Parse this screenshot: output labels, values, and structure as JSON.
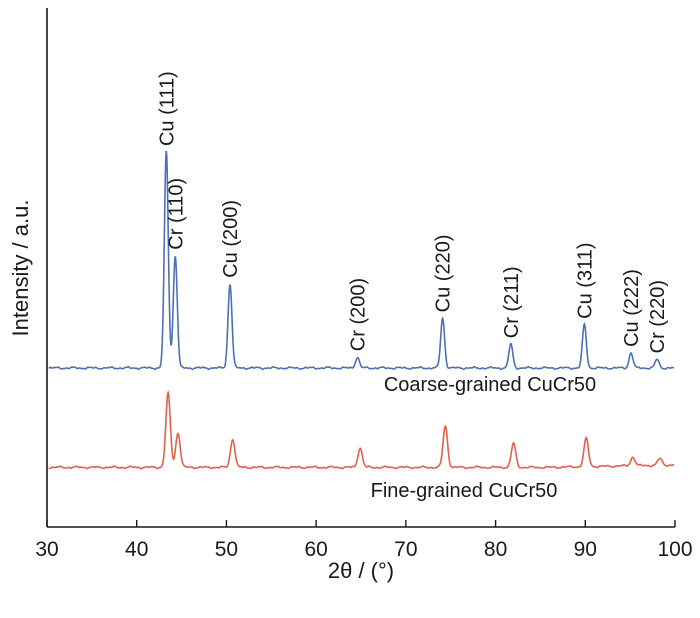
{
  "chart_data": {
    "type": "line",
    "xlabel": "2θ / (°)",
    "ylabel": "Intensity / a.u.",
    "xlim": [
      30,
      100
    ],
    "xticks": [
      "30",
      "40",
      "50",
      "60",
      "70",
      "80",
      "90",
      "100"
    ],
    "grid": false,
    "legend": "inline labels",
    "series": [
      {
        "name": "Coarse-grained CuCr50",
        "color": "#4f6fb6",
        "baseline": 0.0,
        "peaks": [
          {
            "x": 43.3,
            "y": 1.0,
            "label": "Cu (111)"
          },
          {
            "x": 44.3,
            "y": 0.52,
            "label": "Cr (110)"
          },
          {
            "x": 50.4,
            "y": 0.39,
            "label": "Cu (200)"
          },
          {
            "x": 64.6,
            "y": 0.05,
            "label": "Cr (200)"
          },
          {
            "x": 74.1,
            "y": 0.23,
            "label": "Cu (220)"
          },
          {
            "x": 81.7,
            "y": 0.11,
            "label": "Cr (211)"
          },
          {
            "x": 89.9,
            "y": 0.2,
            "label": "Cu (311)"
          },
          {
            "x": 95.1,
            "y": 0.07,
            "label": "Cu (222)"
          },
          {
            "x": 98.0,
            "y": 0.04,
            "label": "Cr (220)"
          }
        ]
      },
      {
        "name": "Fine-grained CuCr50",
        "color": "#e0614f",
        "baseline": -0.46,
        "peaks": [
          {
            "x": 43.5,
            "y": 0.34
          },
          {
            "x": 44.6,
            "y": 0.16
          },
          {
            "x": 50.7,
            "y": 0.13
          },
          {
            "x": 64.9,
            "y": 0.09
          },
          {
            "x": 74.4,
            "y": 0.19
          },
          {
            "x": 82.0,
            "y": 0.11
          },
          {
            "x": 90.1,
            "y": 0.13
          },
          {
            "x": 95.3,
            "y": 0.04
          },
          {
            "x": 98.3,
            "y": 0.03
          }
        ]
      }
    ]
  }
}
